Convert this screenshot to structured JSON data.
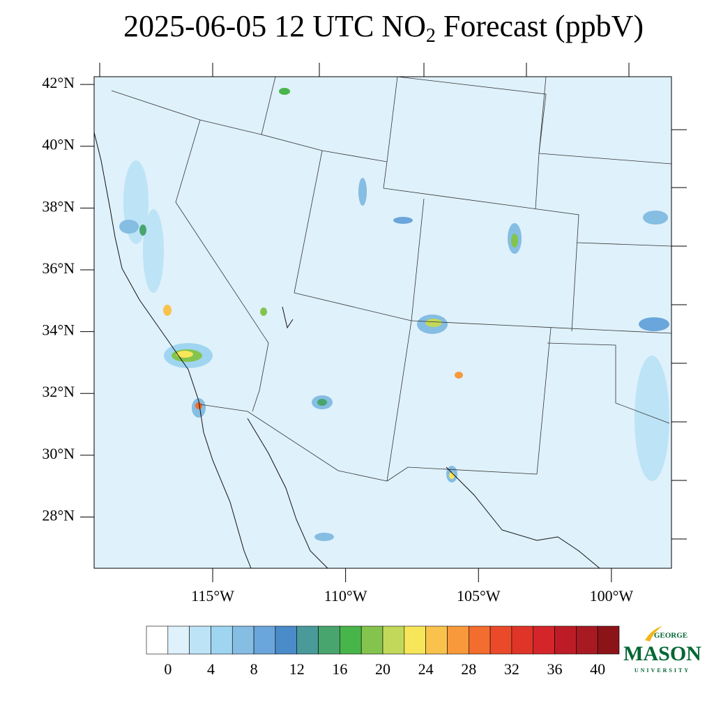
{
  "title": {
    "prefix": "2025-06-05 12 UTC NO",
    "subscript": "2",
    "suffix": " Forecast (ppbV)"
  },
  "map": {
    "latlim": [
      26.34,
      42.25
    ],
    "lonlim": [
      -119.46,
      -97.74
    ],
    "lat_ticks": [
      {
        "value": 42,
        "label": "42°N"
      },
      {
        "value": 40,
        "label": "40°N"
      },
      {
        "value": 38,
        "label": "38°N"
      },
      {
        "value": 36,
        "label": "36°N"
      },
      {
        "value": 34,
        "label": "34°N"
      },
      {
        "value": 32,
        "label": "32°N"
      },
      {
        "value": 30,
        "label": "30°N"
      },
      {
        "value": 28,
        "label": "28°N"
      }
    ],
    "lon_ticks": [
      {
        "value": -115,
        "label": "115°W"
      },
      {
        "value": -110,
        "label": "110°W"
      },
      {
        "value": -105,
        "label": "105°W"
      },
      {
        "value": -100,
        "label": "100°W"
      }
    ]
  },
  "colorbar": {
    "lim": [
      -2,
      42
    ],
    "ticks": [
      0,
      4,
      8,
      12,
      16,
      20,
      24,
      28,
      32,
      36,
      40
    ],
    "colors": [
      "#ffffff",
      "#dff1fb",
      "#bde3f6",
      "#9fd5f0",
      "#85bde3",
      "#6aa6db",
      "#4a8bc9",
      "#4a9a9a",
      "#48a56e",
      "#48b54a",
      "#84c44e",
      "#c2d85a",
      "#f7e65a",
      "#f8c24c",
      "#f89a3c",
      "#f26d2e",
      "#e94b2a",
      "#de3528",
      "#d4262a",
      "#bd1c26",
      "#a71a22",
      "#8c1419"
    ]
  },
  "logo": {
    "top": "GEORGE",
    "main": "MASON",
    "bottom": "UNIVERSITY"
  }
}
